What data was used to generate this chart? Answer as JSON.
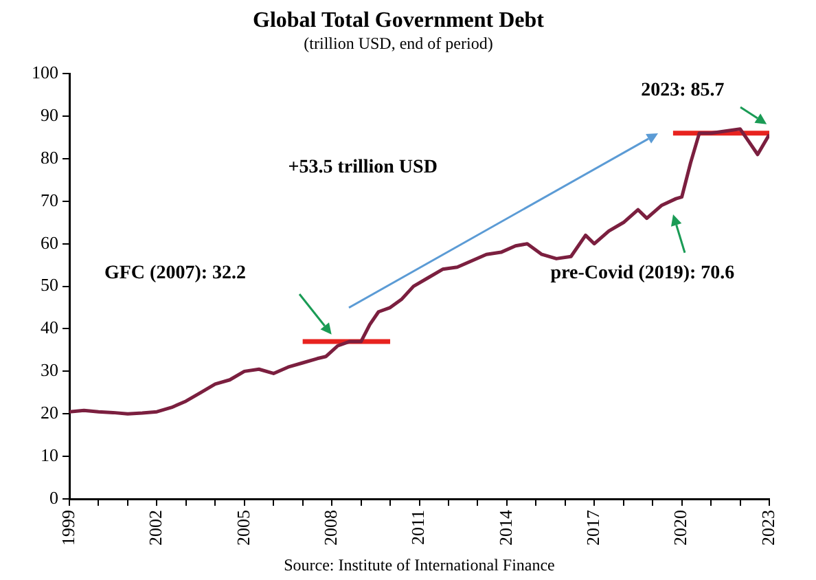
{
  "chart_data": {
    "type": "line",
    "title": "Global Total Government Debt",
    "subtitle": "(trillion USD, end of period)",
    "series": [
      {
        "type": "line",
        "color": "#7b1f3f",
        "x": [
          1999,
          1999.5,
          2000,
          2000.5,
          2001,
          2001.5,
          2002,
          2002.5,
          2003,
          2003.5,
          2004,
          2004.5,
          2005,
          2005.5,
          2006,
          2006.5,
          2007,
          2007.5,
          2007.8,
          2008.2,
          2008.6,
          2009,
          2009.3,
          2009.6,
          2010,
          2010.4,
          2010.8,
          2011.3,
          2011.8,
          2012.3,
          2012.8,
          2013.3,
          2013.8,
          2014.3,
          2014.7,
          2015.2,
          2015.7,
          2016.2,
          2016.7,
          2017,
          2017.5,
          2018,
          2018.5,
          2018.8,
          2019.3,
          2019.8,
          2020,
          2020.3,
          2020.6,
          2021,
          2021.5,
          2022,
          2022.3,
          2022.6,
          2023
        ],
        "values": [
          20.5,
          20.8,
          20.5,
          20.3,
          20,
          20.2,
          20.5,
          21.5,
          23,
          25,
          27,
          28,
          30,
          30.5,
          29.5,
          31,
          32,
          33,
          33.5,
          36,
          37,
          37,
          41,
          44,
          45,
          47,
          50,
          52,
          54,
          54.5,
          56,
          57.5,
          58,
          59.5,
          60,
          57.5,
          56.5,
          57,
          62,
          60,
          63,
          65,
          68,
          66,
          69,
          70.6,
          71,
          79,
          86,
          86,
          86.5,
          87,
          84,
          81,
          85.7
        ]
      },
      {
        "type": "line",
        "color": "#e8231f",
        "x": [
          2007,
          2010
        ],
        "values": [
          37,
          37
        ]
      },
      {
        "type": "line",
        "color": "#e8231f",
        "x": [
          2019.7,
          2023
        ],
        "values": [
          86,
          86
        ]
      }
    ],
    "xlim": [
      1999,
      2023
    ],
    "xticks": [
      1999,
      {
        "value": 2000,
        "label": null
      },
      {
        "value": 2001,
        "label": null
      },
      2002,
      {
        "value": 2003,
        "label": null
      },
      {
        "value": 2004,
        "label": null
      },
      2005,
      {
        "value": 2006,
        "label": null
      },
      {
        "value": 2007,
        "label": null
      },
      2008,
      {
        "value": 2009,
        "label": null
      },
      {
        "value": 2010,
        "label": null
      },
      2011,
      {
        "value": 2012,
        "label": null
      },
      {
        "value": 2013,
        "label": null
      },
      2014,
      {
        "value": 2015,
        "label": null
      },
      {
        "value": 2016,
        "label": null
      },
      2017,
      {
        "value": 2018,
        "label": null
      },
      {
        "value": 2019,
        "label": null
      },
      2020,
      {
        "value": 2021,
        "label": null
      },
      {
        "value": 2022,
        "label": null
      },
      2023
    ],
    "ylim": [
      0,
      100
    ],
    "yticks": [
      0,
      10,
      20,
      30,
      40,
      50,
      60,
      70,
      80,
      90,
      100
    ],
    "grid": false,
    "legend": false,
    "marker": "none",
    "line_style": "solid",
    "annotations": [
      "GFC (2007): 32.2",
      "+53.5 trillion USD",
      "pre-Covid (2019): 70.6",
      "2023: 85.7",
      "Source: Institute of International Finance"
    ]
  }
}
